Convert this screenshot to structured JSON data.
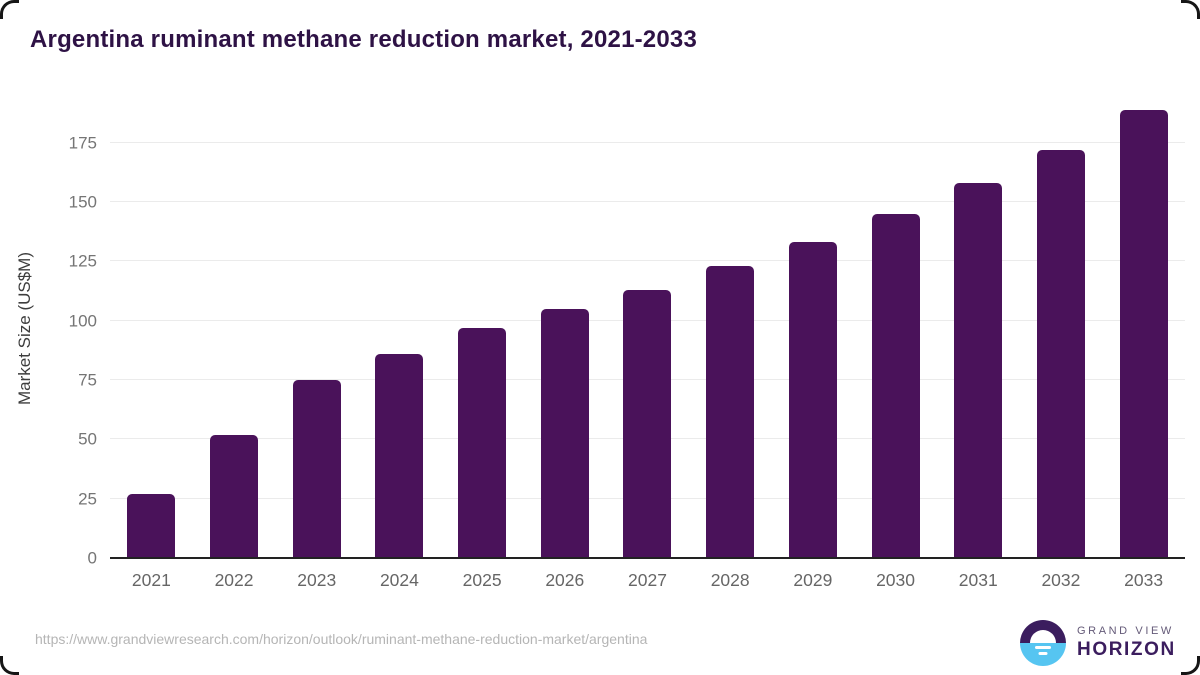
{
  "title": "Argentina ruminant methane reduction market, 2021-2033",
  "footer": {
    "source_url": "https://www.grandviewresearch.com/horizon/outlook/ruminant-methane-reduction-market/argentina",
    "logo": {
      "line1": "GRAND VIEW",
      "line2": "HORIZON"
    }
  },
  "colors": {
    "bar": "#4a125a",
    "title": "#2e1245",
    "tick_label": "#757575",
    "x_label": "#666666",
    "gridline": "#ebebeb",
    "axis_line": "#222222",
    "url_text": "#b5b5b5",
    "logo_dark_purple": "#3b1d5e",
    "logo_light_blue": "#56c5f1"
  },
  "chart_data": {
    "type": "bar",
    "title": "Argentina ruminant methane reduction market, 2021-2033",
    "categories": [
      "2021",
      "2022",
      "2023",
      "2024",
      "2025",
      "2026",
      "2027",
      "2028",
      "2029",
      "2030",
      "2031",
      "2032",
      "2033"
    ],
    "values": [
      27,
      52,
      75,
      86,
      97,
      105,
      113,
      123,
      133,
      145,
      158,
      172,
      189
    ],
    "xlabel": "",
    "ylabel": "Market Size (US$M)",
    "yticks": [
      0,
      25,
      50,
      75,
      100,
      125,
      150,
      175
    ],
    "ylim": [
      0,
      193
    ],
    "grid": true,
    "legend": false,
    "bar_color": "#4a125a"
  }
}
